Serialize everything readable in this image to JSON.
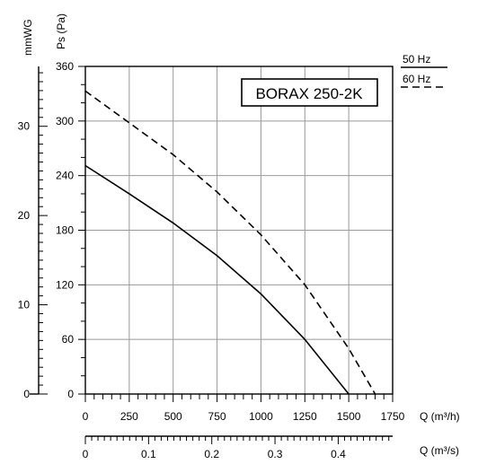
{
  "chart_data": {
    "type": "line",
    "title": "BORAX 250-2K",
    "x": [
      0,
      250,
      500,
      750,
      1000,
      1250,
      1500,
      1650
    ],
    "x_ticks": [
      0,
      250,
      500,
      750,
      1000,
      1250,
      1500,
      1750
    ],
    "x_tick_labels": [
      "0",
      "250",
      "500",
      "750",
      "1000",
      "1250",
      "1500",
      "1750"
    ],
    "xlabel": "Q (m³/h)",
    "xlim": [
      0,
      1750
    ],
    "x2_ticks": [
      0,
      0.1,
      0.2,
      0.3,
      0.4
    ],
    "x2_tick_labels": [
      "0",
      "0.1",
      "0.2",
      "0.3",
      "0.4"
    ],
    "x2label": "Q (m³/s)",
    "y_ticks": [
      0,
      60,
      120,
      180,
      240,
      300,
      360
    ],
    "y_tick_labels": [
      "0",
      "60",
      "120",
      "180",
      "240",
      "300",
      "360"
    ],
    "ylabel": "Ps (Pa)",
    "ylim": [
      0,
      360
    ],
    "y2_ticks": [
      0,
      10,
      20,
      30
    ],
    "y2_tick_labels": [
      "0",
      "10",
      "20",
      "30"
    ],
    "y2label": "mmWG",
    "grid": true,
    "legend_position": "top-right",
    "series": [
      {
        "name": "50 Hz",
        "style": "solid",
        "x": [
          0,
          250,
          500,
          750,
          1000,
          1250,
          1500
        ],
        "values": [
          251,
          220,
          188,
          152,
          110,
          60,
          0
        ]
      },
      {
        "name": "60 Hz",
        "style": "dashed",
        "x": [
          0,
          250,
          500,
          750,
          1000,
          1250,
          1500,
          1650
        ],
        "values": [
          333,
          298,
          263,
          222,
          175,
          120,
          50,
          0
        ]
      }
    ]
  }
}
